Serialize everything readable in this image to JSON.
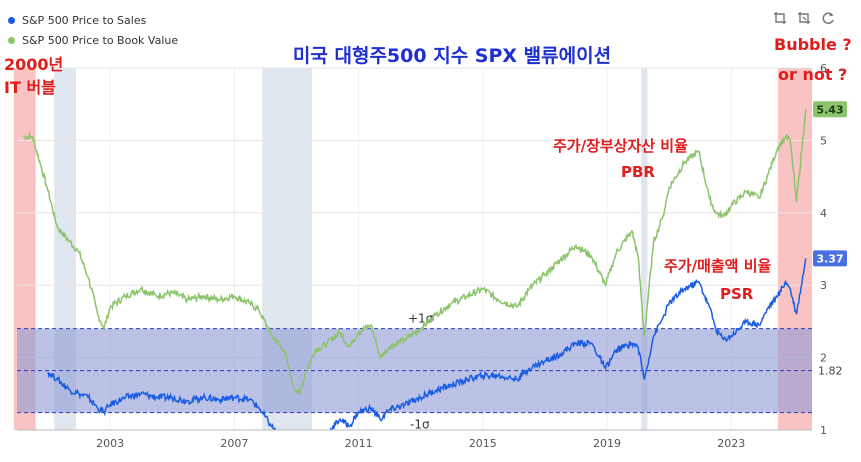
{
  "legend": [
    {
      "label": "S&P 500 Price to Sales",
      "color": "#1a5de3"
    },
    {
      "label": "S&P 500 Price to Book Value",
      "color": "#8cc46c"
    }
  ],
  "toolbar_icons": [
    "zoom-in-icon",
    "zoom-reset-icon",
    "refresh-icon"
  ],
  "annotations": {
    "title": "미국 대형주500 지수 SPX 밸류에이션",
    "bubble_2000": "2000년",
    "bubble_2000_sub": "IT 버블",
    "bubble_now": "Bubble ?",
    "bubble_now_sub": "or not ?",
    "pbr_kr": "주가/장부상자산 비율",
    "pbr": "PBR",
    "psr_kr": "주가/매출액 비율",
    "psr": "PSR",
    "plus_sigma": "+1σ",
    "minus_sigma": "-1σ"
  },
  "chart_data": {
    "type": "line",
    "title": "미국 대형주500 지수 SPX 밸류에이션",
    "xlabel": "",
    "ylabel": "",
    "xlim": [
      2000.0,
      2025.6
    ],
    "ylim": [
      1,
      6
    ],
    "x_ticks": [
      2003,
      2007,
      2011,
      2015,
      2019,
      2023
    ],
    "y_ticks": [
      1,
      2,
      3,
      4,
      5,
      6
    ],
    "grid": true,
    "legend_position": "top-left",
    "bands": [
      {
        "y_top": 2.4,
        "y_bottom": 1.24,
        "mean": 1.82,
        "mean_label": "1.82",
        "color": "#8d9ad6"
      }
    ],
    "recession_shading": [
      [
        2001.2,
        2001.9
      ],
      [
        2007.9,
        2009.5
      ],
      [
        2020.1,
        2020.3
      ]
    ],
    "highlight_regions": [
      [
        1999.9,
        2000.6
      ],
      [
        2024.5,
        2025.6
      ]
    ],
    "last_values": {
      "pbr": "5.43",
      "psr": "3.37"
    },
    "series": [
      {
        "name": "S&P 500 Price to Book Value",
        "color": "#8cc46c",
        "x": [
          2000.2,
          2000.5,
          2000.8,
          2001.0,
          2001.3,
          2001.7,
          2002.0,
          2002.3,
          2002.6,
          2002.8,
          2003.0,
          2003.5,
          2004.0,
          2004.5,
          2005.0,
          2005.5,
          2006.0,
          2006.5,
          2007.0,
          2007.5,
          2007.8,
          2008.2,
          2008.6,
          2008.9,
          2009.1,
          2009.3,
          2009.6,
          2010.0,
          2010.4,
          2010.7,
          2011.0,
          2011.4,
          2011.7,
          2012.0,
          2012.5,
          2013.0,
          2013.5,
          2014.0,
          2014.5,
          2015.0,
          2015.5,
          2016.1,
          2016.5,
          2017.0,
          2017.5,
          2018.0,
          2018.5,
          2018.95,
          2019.3,
          2019.8,
          2020.0,
          2020.2,
          2020.5,
          2020.8,
          2021.0,
          2021.5,
          2021.95,
          2022.3,
          2022.5,
          2022.75,
          2023.0,
          2023.5,
          2023.9,
          2024.2,
          2024.5,
          2024.75,
          2024.9,
          2025.1,
          2025.4
        ],
        "values": [
          5.05,
          5.05,
          4.6,
          4.3,
          3.8,
          3.6,
          3.45,
          3.1,
          2.6,
          2.4,
          2.7,
          2.85,
          2.95,
          2.85,
          2.9,
          2.8,
          2.85,
          2.8,
          2.85,
          2.75,
          2.65,
          2.3,
          2.1,
          1.6,
          1.5,
          1.8,
          2.1,
          2.2,
          2.35,
          2.15,
          2.35,
          2.45,
          2.0,
          2.15,
          2.25,
          2.4,
          2.6,
          2.75,
          2.85,
          2.95,
          2.8,
          2.7,
          2.95,
          3.15,
          3.35,
          3.55,
          3.4,
          3.0,
          3.45,
          3.75,
          3.4,
          2.3,
          3.6,
          3.95,
          4.35,
          4.7,
          4.85,
          4.2,
          4.0,
          3.95,
          4.1,
          4.3,
          4.2,
          4.55,
          4.9,
          5.05,
          5.0,
          4.15,
          5.43
        ]
      },
      {
        "name": "S&P 500 Price to Sales",
        "color": "#1a5de3",
        "x": [
          2001.0,
          2001.3,
          2001.7,
          2002.0,
          2002.3,
          2002.6,
          2002.8,
          2003.0,
          2003.5,
          2004.0,
          2004.5,
          2005.0,
          2005.5,
          2006.0,
          2006.5,
          2007.0,
          2007.5,
          2007.8,
          2008.2,
          2008.6,
          2008.9,
          2009.2,
          2009.5,
          2010.0,
          2010.4,
          2010.7,
          2011.0,
          2011.4,
          2011.7,
          2012.0,
          2012.5,
          2013.0,
          2013.5,
          2014.0,
          2014.5,
          2015.0,
          2015.5,
          2016.1,
          2016.5,
          2017.0,
          2017.5,
          2018.0,
          2018.5,
          2018.95,
          2019.3,
          2019.8,
          2020.0,
          2020.2,
          2020.5,
          2020.8,
          2021.0,
          2021.5,
          2021.95,
          2022.3,
          2022.5,
          2022.75,
          2023.0,
          2023.5,
          2023.9,
          2024.2,
          2024.5,
          2024.75,
          2024.9,
          2025.1,
          2025.4
        ],
        "values": [
          1.8,
          1.7,
          1.55,
          1.5,
          1.45,
          1.3,
          1.25,
          1.35,
          1.45,
          1.5,
          1.45,
          1.45,
          1.4,
          1.45,
          1.42,
          1.45,
          1.42,
          1.3,
          1.05,
          0.85,
          0.65,
          0.7,
          0.85,
          0.95,
          1.15,
          1.05,
          1.25,
          1.3,
          1.15,
          1.28,
          1.35,
          1.45,
          1.55,
          1.62,
          1.7,
          1.75,
          1.75,
          1.7,
          1.85,
          1.95,
          2.05,
          2.2,
          2.2,
          1.85,
          2.1,
          2.2,
          2.15,
          1.7,
          2.3,
          2.55,
          2.75,
          2.95,
          3.05,
          2.7,
          2.4,
          2.25,
          2.3,
          2.5,
          2.45,
          2.7,
          2.85,
          3.05,
          2.95,
          2.6,
          3.37
        ]
      }
    ]
  }
}
